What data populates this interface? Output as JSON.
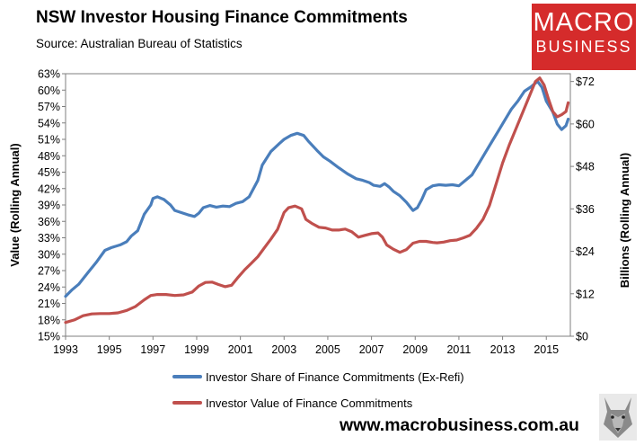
{
  "header": {
    "title": "NSW Investor Housing Finance Commitments",
    "subtitle": "Source: Australian Bureau of Statistics"
  },
  "logo": {
    "line1": "MACRO",
    "line2": "BUSINESS",
    "color": "#d52b2b"
  },
  "footer": {
    "url": "www.macrobusiness.com.au"
  },
  "chart_data": {
    "type": "line",
    "title": "NSW Investor Housing Finance Commitments",
    "grid": false,
    "legend_position": "bottom",
    "x_ticks": [
      "1993",
      "1995",
      "1997",
      "1999",
      "2001",
      "2003",
      "2005",
      "2007",
      "2009",
      "2011",
      "2013",
      "2015"
    ],
    "xlim": [
      1993,
      2016.1
    ],
    "y_left": {
      "label": "Value (Rolling Annual)",
      "ticks": [
        "15%",
        "18%",
        "21%",
        "24%",
        "27%",
        "30%",
        "33%",
        "36%",
        "39%",
        "42%",
        "45%",
        "48%",
        "51%",
        "54%",
        "57%",
        "60%",
        "63%"
      ],
      "ylim": [
        15,
        63
      ]
    },
    "y_right": {
      "label": "Billions (Rolling Annual)",
      "ticks": [
        "$0",
        "$12",
        "$24",
        "$36",
        "$48",
        "$60",
        "$72"
      ],
      "ylim": [
        0,
        74.2
      ]
    },
    "series": [
      {
        "name": "Investor Share of Finance Commitments (Ex-Refi)",
        "axis": "left",
        "color": "#4a7ebb",
        "points": [
          [
            1993.0,
            22.3
          ],
          [
            1993.3,
            23.5
          ],
          [
            1993.6,
            24.5
          ],
          [
            1994.0,
            26.5
          ],
          [
            1994.4,
            28.5
          ],
          [
            1994.8,
            30.7
          ],
          [
            1995.1,
            31.2
          ],
          [
            1995.5,
            31.7
          ],
          [
            1995.8,
            32.3
          ],
          [
            1996.0,
            33.3
          ],
          [
            1996.3,
            34.3
          ],
          [
            1996.6,
            37.3
          ],
          [
            1996.9,
            39.0
          ],
          [
            1997.0,
            40.2
          ],
          [
            1997.2,
            40.5
          ],
          [
            1997.5,
            40.0
          ],
          [
            1997.8,
            39.0
          ],
          [
            1998.0,
            38.0
          ],
          [
            1998.3,
            37.6
          ],
          [
            1998.6,
            37.2
          ],
          [
            1998.9,
            36.9
          ],
          [
            1999.1,
            37.5
          ],
          [
            1999.3,
            38.5
          ],
          [
            1999.6,
            38.9
          ],
          [
            1999.9,
            38.6
          ],
          [
            2000.2,
            38.8
          ],
          [
            2000.5,
            38.7
          ],
          [
            2000.8,
            39.3
          ],
          [
            2001.1,
            39.6
          ],
          [
            2001.4,
            40.5
          ],
          [
            2001.8,
            43.5
          ],
          [
            2002.0,
            46.3
          ],
          [
            2002.4,
            48.8
          ],
          [
            2002.8,
            50.3
          ],
          [
            2003.0,
            51.0
          ],
          [
            2003.3,
            51.7
          ],
          [
            2003.6,
            52.1
          ],
          [
            2003.9,
            51.7
          ],
          [
            2004.1,
            50.7
          ],
          [
            2004.5,
            49.0
          ],
          [
            2004.8,
            47.8
          ],
          [
            2005.1,
            47.0
          ],
          [
            2005.5,
            45.8
          ],
          [
            2005.9,
            44.7
          ],
          [
            2006.3,
            43.8
          ],
          [
            2006.6,
            43.5
          ],
          [
            2006.9,
            43.1
          ],
          [
            2007.1,
            42.6
          ],
          [
            2007.4,
            42.4
          ],
          [
            2007.6,
            42.9
          ],
          [
            2007.8,
            42.3
          ],
          [
            2008.0,
            41.5
          ],
          [
            2008.3,
            40.7
          ],
          [
            2008.6,
            39.5
          ],
          [
            2008.9,
            38.0
          ],
          [
            2009.1,
            38.5
          ],
          [
            2009.3,
            40.0
          ],
          [
            2009.5,
            41.8
          ],
          [
            2009.8,
            42.5
          ],
          [
            2010.1,
            42.7
          ],
          [
            2010.4,
            42.6
          ],
          [
            2010.7,
            42.7
          ],
          [
            2011.0,
            42.5
          ],
          [
            2011.3,
            43.5
          ],
          [
            2011.6,
            44.5
          ],
          [
            2011.9,
            46.5
          ],
          [
            2012.2,
            48.5
          ],
          [
            2012.5,
            50.5
          ],
          [
            2012.8,
            52.5
          ],
          [
            2013.1,
            54.5
          ],
          [
            2013.4,
            56.5
          ],
          [
            2013.7,
            58.0
          ],
          [
            2014.0,
            59.8
          ],
          [
            2014.3,
            60.6
          ],
          [
            2014.6,
            61.6
          ],
          [
            2014.8,
            60.5
          ],
          [
            2015.0,
            58.0
          ],
          [
            2015.3,
            56.0
          ],
          [
            2015.5,
            53.8
          ],
          [
            2015.7,
            52.8
          ],
          [
            2015.9,
            53.5
          ],
          [
            2016.0,
            54.7
          ]
        ]
      },
      {
        "name": "Investor Value of Finance Commitments",
        "axis": "right",
        "color": "#c0504d",
        "points": [
          [
            1993.0,
            3.9
          ],
          [
            1993.4,
            4.6
          ],
          [
            1993.8,
            5.8
          ],
          [
            1994.2,
            6.3
          ],
          [
            1994.6,
            6.4
          ],
          [
            1995.0,
            6.4
          ],
          [
            1995.4,
            6.6
          ],
          [
            1995.8,
            7.3
          ],
          [
            1996.2,
            8.4
          ],
          [
            1996.6,
            10.3
          ],
          [
            1996.9,
            11.5
          ],
          [
            1997.2,
            11.8
          ],
          [
            1997.6,
            11.8
          ],
          [
            1998.0,
            11.5
          ],
          [
            1998.4,
            11.7
          ],
          [
            1998.8,
            12.5
          ],
          [
            1999.1,
            14.2
          ],
          [
            1999.4,
            15.2
          ],
          [
            1999.7,
            15.3
          ],
          [
            2000.0,
            14.6
          ],
          [
            2000.3,
            14.0
          ],
          [
            2000.6,
            14.4
          ],
          [
            2000.9,
            16.7
          ],
          [
            2001.2,
            18.8
          ],
          [
            2001.5,
            20.6
          ],
          [
            2001.8,
            22.5
          ],
          [
            2002.1,
            25.0
          ],
          [
            2002.4,
            27.5
          ],
          [
            2002.7,
            30.2
          ],
          [
            2003.0,
            35.0
          ],
          [
            2003.2,
            36.3
          ],
          [
            2003.5,
            36.8
          ],
          [
            2003.8,
            36.0
          ],
          [
            2004.0,
            33.0
          ],
          [
            2004.3,
            31.8
          ],
          [
            2004.6,
            30.8
          ],
          [
            2004.9,
            30.6
          ],
          [
            2005.2,
            30.0
          ],
          [
            2005.5,
            30.0
          ],
          [
            2005.8,
            30.3
          ],
          [
            2006.1,
            29.5
          ],
          [
            2006.4,
            28.0
          ],
          [
            2006.7,
            28.5
          ],
          [
            2007.0,
            29.0
          ],
          [
            2007.3,
            29.2
          ],
          [
            2007.5,
            28.0
          ],
          [
            2007.7,
            25.8
          ],
          [
            2008.0,
            24.6
          ],
          [
            2008.3,
            23.7
          ],
          [
            2008.6,
            24.5
          ],
          [
            2008.9,
            26.3
          ],
          [
            2009.2,
            26.8
          ],
          [
            2009.5,
            26.8
          ],
          [
            2009.8,
            26.5
          ],
          [
            2010.0,
            26.4
          ],
          [
            2010.3,
            26.6
          ],
          [
            2010.6,
            27.0
          ],
          [
            2010.9,
            27.2
          ],
          [
            2011.2,
            27.8
          ],
          [
            2011.5,
            28.5
          ],
          [
            2011.8,
            30.5
          ],
          [
            2012.1,
            33.0
          ],
          [
            2012.4,
            37.0
          ],
          [
            2012.7,
            43.0
          ],
          [
            2013.0,
            49.0
          ],
          [
            2013.3,
            54.0
          ],
          [
            2013.6,
            58.5
          ],
          [
            2013.9,
            63.0
          ],
          [
            2014.2,
            67.5
          ],
          [
            2014.5,
            72.0
          ],
          [
            2014.7,
            73.0
          ],
          [
            2014.9,
            71.0
          ],
          [
            2015.1,
            67.0
          ],
          [
            2015.3,
            63.5
          ],
          [
            2015.5,
            62.0
          ],
          [
            2015.7,
            62.6
          ],
          [
            2015.9,
            63.5
          ],
          [
            2016.0,
            66.0
          ]
        ]
      }
    ]
  }
}
